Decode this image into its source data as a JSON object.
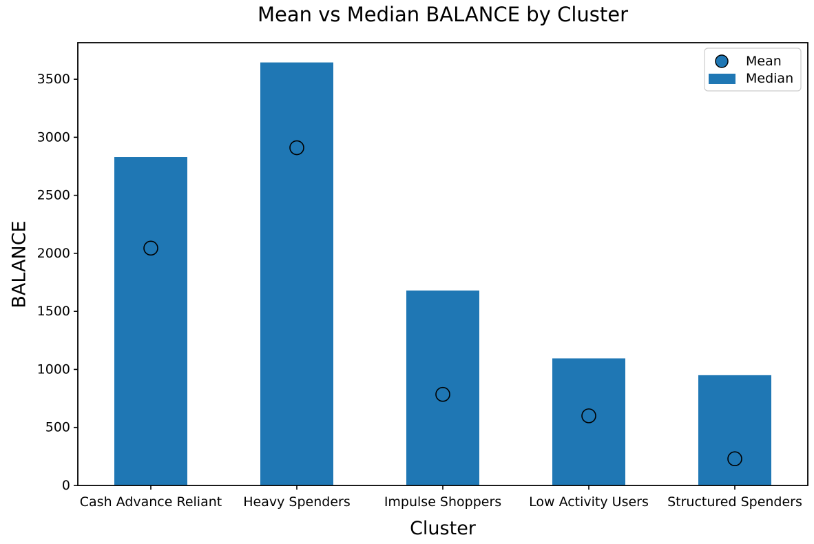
{
  "figure": {
    "title": "Mean vs Median BALANCE by Cluster",
    "xlabel": "Cluster",
    "ylabel": "BALANCE"
  },
  "legend": {
    "position": "upper right",
    "items": [
      {
        "label": "Mean",
        "marker": "circle"
      },
      {
        "label": "Median",
        "marker": "rect"
      }
    ]
  },
  "colors": {
    "bar_fill": "#1f77b4",
    "marker_fill": "#1f77b4",
    "marker_edge": "#000000",
    "axis": "#000000",
    "legend_border": "#cccccc",
    "background": "#ffffff"
  },
  "chart_data": {
    "type": "bar",
    "title": "Mean vs Median BALANCE by Cluster",
    "xlabel": "Cluster",
    "ylabel": "BALANCE",
    "categories": [
      "Cash Advance Reliant",
      "Heavy Spenders",
      "Impulse Shoppers",
      "Low Activity Users",
      "Structured Spenders"
    ],
    "series": [
      {
        "name": "Median",
        "type": "bar",
        "values": [
          2830,
          3645,
          1680,
          1095,
          950
        ],
        "color": "#1f77b4"
      },
      {
        "name": "Mean",
        "type": "scatter",
        "values": [
          2045,
          2910,
          785,
          600,
          230
        ],
        "marker": "circle",
        "fill": "#1f77b4",
        "edge": "#000000"
      }
    ],
    "ylim": [
      0,
      3815
    ],
    "yticks": [
      0,
      500,
      1000,
      1500,
      2000,
      2500,
      3000,
      3500
    ],
    "grid": false,
    "legend_position": "upper right"
  }
}
